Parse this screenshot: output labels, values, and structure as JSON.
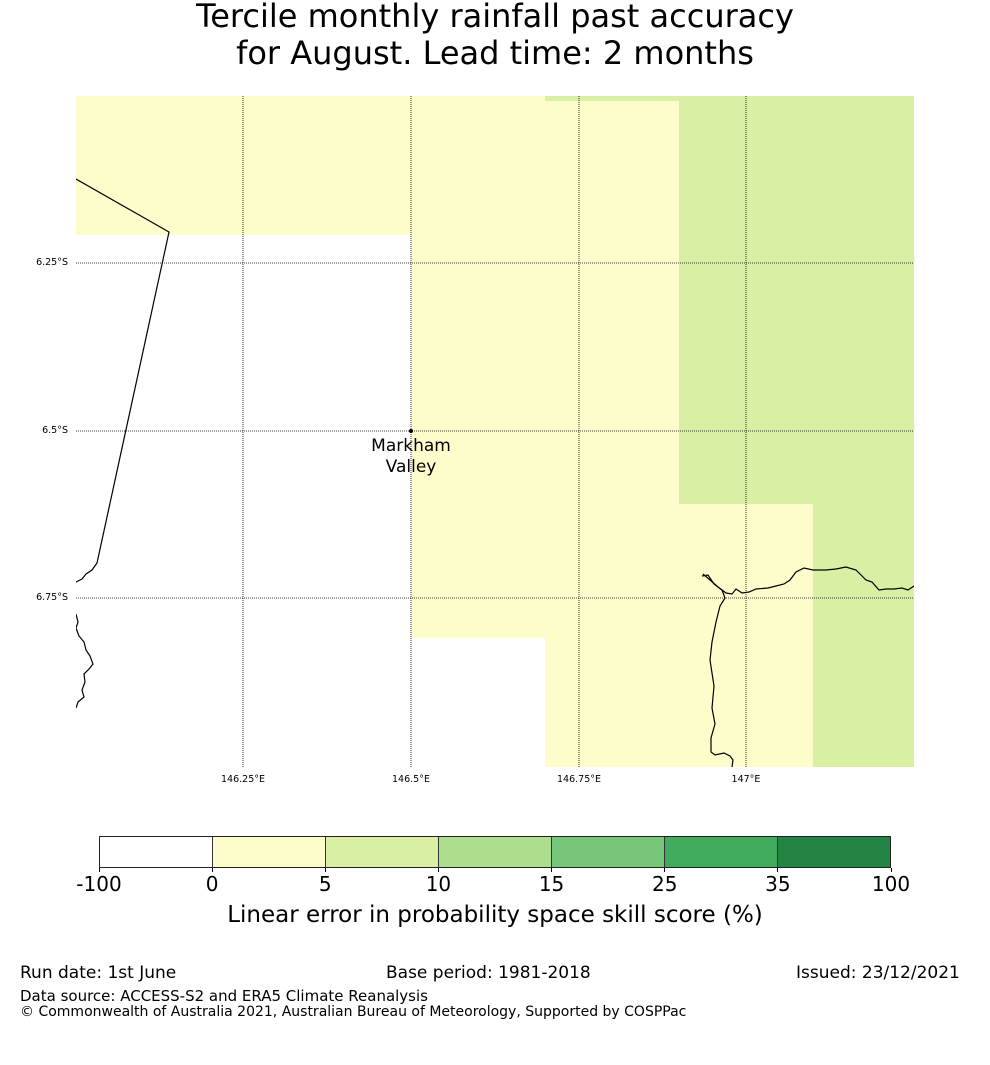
{
  "title": {
    "line1": "Tercile monthly rainfall past accuracy",
    "line2": "for August. Lead time: 2 months"
  },
  "map": {
    "region": "Markham Valley",
    "latitude_labels": [
      "6.25°S",
      "6.5°S",
      "6.75°S"
    ],
    "longitude_labels": [
      "146.25°E",
      "146.5°E",
      "146.75°E",
      "147°E"
    ],
    "place_marker": {
      "label": "Markham\nValley",
      "lon": 146.5,
      "lat": -6.5
    },
    "fill_colors": {
      "cat_0_5": "#fdfdcb",
      "cat_5_10": "#d9efa3",
      "background": "#ffffff"
    }
  },
  "colorbar": {
    "tick_labels": [
      "-100",
      "0",
      "5",
      "10",
      "15",
      "25",
      "35",
      "100"
    ],
    "colors": [
      "#ffffff",
      "#fdfdcb",
      "#d9efa3",
      "#addd8e",
      "#78c679",
      "#41ab5d",
      "#238443"
    ],
    "label": "Linear error in probability space skill score (%)"
  },
  "footer": {
    "run_date": "Run date: 1st June",
    "base_period": "Base period: 1981-2018",
    "issued": "Issued: 23/12/2021",
    "data_source": "Data source: ACCESS-S2 and ERA5 Climate Reanalysis",
    "copyright": "© Commonwealth of Australia 2021, Australian Bureau of Meteorology, Supported by COSPPac"
  }
}
